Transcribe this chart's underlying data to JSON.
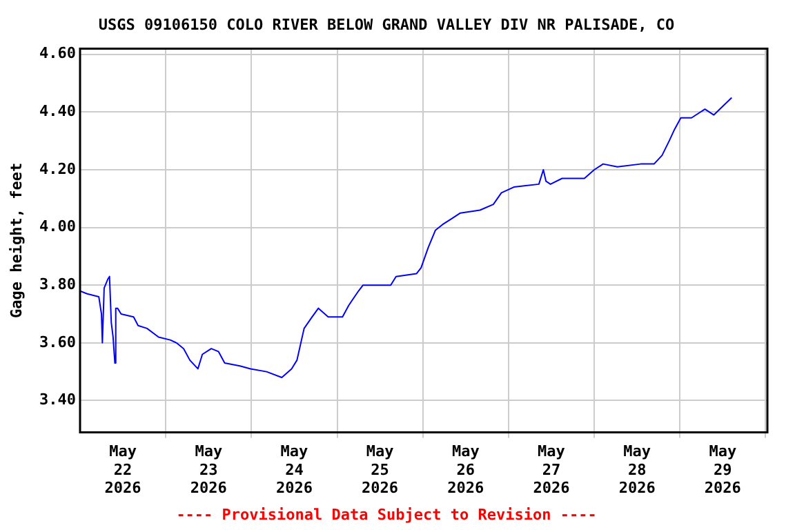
{
  "chart_data": {
    "type": "line",
    "title": "USGS 09106150 COLO RIVER BELOW GRAND VALLEY DIV NR PALISADE, CO",
    "ylabel": "Gage height, feet",
    "annotations": [
      "---- Provisional Data Subject to Revision ----"
    ],
    "x": [
      "2026-05-22T00:00",
      "2026-05-22T02:00",
      "2026-05-22T05:15",
      "2026-05-22T06:00",
      "2026-05-22T06:15",
      "2026-05-22T06:45",
      "2026-05-22T07:45",
      "2026-05-22T08:15",
      "2026-05-22T08:45",
      "2026-05-22T09:15",
      "2026-05-22T09:45",
      "2026-05-22T10:00",
      "2026-05-22T10:30",
      "2026-05-22T11:30",
      "2026-05-22T15:00",
      "2026-05-22T16:15",
      "2026-05-22T18:45",
      "2026-05-22T22:00",
      "2026-05-23T01:15",
      "2026-05-23T03:00",
      "2026-05-23T05:00",
      "2026-05-23T06:45",
      "2026-05-23T09:00",
      "2026-05-23T10:15",
      "2026-05-23T12:45",
      "2026-05-23T14:45",
      "2026-05-23T16:30",
      "2026-05-23T20:45",
      "2026-05-23T23:45",
      "2026-05-24T04:15",
      "2026-05-24T08:30",
      "2026-05-24T11:15",
      "2026-05-24T12:45",
      "2026-05-24T14:45",
      "2026-05-24T17:00",
      "2026-05-24T18:45",
      "2026-05-24T21:30",
      "2026-05-25T01:30",
      "2026-05-25T03:15",
      "2026-05-25T06:00",
      "2026-05-25T07:15",
      "2026-05-25T09:30",
      "2026-05-25T15:00",
      "2026-05-25T16:30",
      "2026-05-25T22:15",
      "2026-05-25T23:30",
      "2026-05-26T01:30",
      "2026-05-26T03:30",
      "2026-05-26T05:30",
      "2026-05-26T08:00",
      "2026-05-26T10:30",
      "2026-05-26T16:00",
      "2026-05-26T19:45",
      "2026-05-26T22:00",
      "2026-05-27T01:30",
      "2026-05-27T08:30",
      "2026-05-27T09:45",
      "2026-05-27T10:30",
      "2026-05-27T11:45",
      "2026-05-27T15:00",
      "2026-05-27T21:15",
      "2026-05-28T00:00",
      "2026-05-28T02:30",
      "2026-05-28T06:30",
      "2026-05-28T13:00",
      "2026-05-28T16:45",
      "2026-05-28T19:00",
      "2026-05-28T21:00",
      "2026-05-28T22:30",
      "2026-05-29T00:15",
      "2026-05-29T03:15",
      "2026-05-29T07:00",
      "2026-05-29T09:30",
      "2026-05-29T12:00",
      "2026-05-29T14:30"
    ],
    "series": [
      {
        "color": "#0000ff",
        "values": [
          3.78,
          3.77,
          3.76,
          3.7,
          3.6,
          3.79,
          3.82,
          3.83,
          3.67,
          3.62,
          3.53,
          3.72,
          3.72,
          3.7,
          3.69,
          3.66,
          3.65,
          3.62,
          3.61,
          3.6,
          3.58,
          3.54,
          3.51,
          3.56,
          3.58,
          3.57,
          3.53,
          3.52,
          3.51,
          3.5,
          3.48,
          3.51,
          3.54,
          3.65,
          3.69,
          3.72,
          3.69,
          3.69,
          3.73,
          3.78,
          3.8,
          3.8,
          3.8,
          3.83,
          3.84,
          3.86,
          3.93,
          3.99,
          4.01,
          4.03,
          4.05,
          4.06,
          4.08,
          4.12,
          4.14,
          4.15,
          4.2,
          4.16,
          4.15,
          4.17,
          4.17,
          4.2,
          4.22,
          4.21,
          4.22,
          4.22,
          4.25,
          4.3,
          4.34,
          4.38,
          4.38,
          4.41,
          4.39,
          4.42,
          4.45
        ]
      }
    ],
    "xlim": [
      "2026-05-22T00:00",
      "2026-05-30T00:30"
    ],
    "xticks": [
      {
        "value": "2026-05-22T12:00",
        "label": "May 22 2026"
      },
      {
        "value": "2026-05-23T00:00",
        "label": null
      },
      {
        "value": "2026-05-23T12:00",
        "label": "May 23 2026"
      },
      {
        "value": "2026-05-24T00:00",
        "label": null
      },
      {
        "value": "2026-05-24T12:00",
        "label": "May 24 2026"
      },
      {
        "value": "2026-05-25T00:00",
        "label": null
      },
      {
        "value": "2026-05-25T12:00",
        "label": "May 25 2026"
      },
      {
        "value": "2026-05-26T00:00",
        "label": null
      },
      {
        "value": "2026-05-26T12:00",
        "label": "May 26 2026"
      },
      {
        "value": "2026-05-27T00:00",
        "label": null
      },
      {
        "value": "2026-05-27T12:00",
        "label": "May 27 2026"
      },
      {
        "value": "2026-05-28T00:00",
        "label": null
      },
      {
        "value": "2026-05-28T12:00",
        "label": "May 28 2026"
      },
      {
        "value": "2026-05-29T00:00",
        "label": null
      },
      {
        "value": "2026-05-29T12:00",
        "label": "May 29 2026"
      },
      {
        "value": "2026-05-30T00:00",
        "label": null
      }
    ],
    "ylim": [
      3.29,
      4.62
    ],
    "yticks": [
      {
        "value": 3.4,
        "label": "3.40"
      },
      {
        "value": 3.6,
        "label": "3.60"
      },
      {
        "value": 3.8,
        "label": "3.80"
      },
      {
        "value": 4.0,
        "label": "4.00"
      },
      {
        "value": 4.2,
        "label": "4.20"
      },
      {
        "value": 4.4,
        "label": "4.40"
      },
      {
        "value": 4.6,
        "label": "4.60"
      }
    ],
    "grid": true,
    "legend": false,
    "marker": "none",
    "line_style": "solid"
  }
}
